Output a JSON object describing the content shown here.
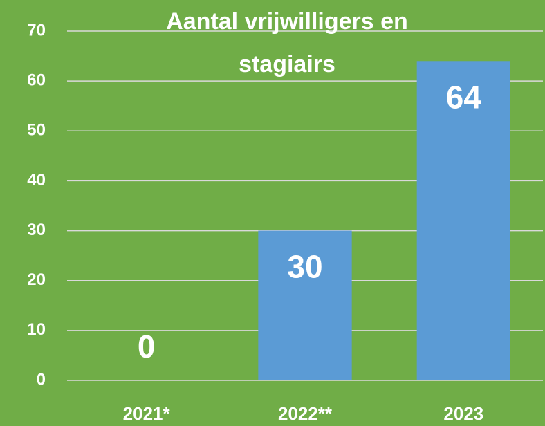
{
  "chart_data": {
    "type": "bar",
    "title": "Aantal vrijwilligers en stagiairs",
    "categories": [
      "2021*",
      "2022**",
      "2023"
    ],
    "values": [
      0,
      30,
      64
    ],
    "color": "#5b9bd5",
    "ylim": [
      0,
      70
    ],
    "yticks": [
      0,
      10,
      20,
      30,
      40,
      50,
      60,
      70
    ],
    "grid": true
  }
}
